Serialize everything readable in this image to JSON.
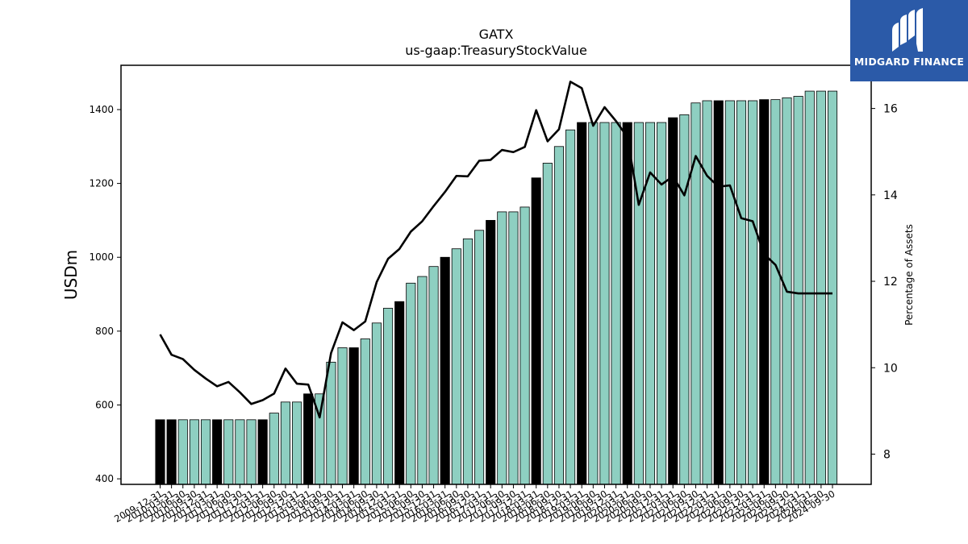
{
  "logo": {
    "text": "MIDGARD FINANCE"
  },
  "chart_data": {
    "type": "bar",
    "title": "GATX",
    "subtitle": "us-gaap:TreasuryStockValue",
    "ylabel": "USDm",
    "y2label": "Percentage of Assets",
    "ylim": [
      385,
      1520
    ],
    "y2lim": [
      7.3,
      17.0
    ],
    "yticks": [
      400,
      600,
      800,
      1000,
      1200,
      1400
    ],
    "y2ticks": [
      8,
      10,
      12,
      14,
      16
    ],
    "grid": false,
    "colors": {
      "bar_quarter": "#8ecfc1",
      "bar_annual": "#000000",
      "line": "#000000"
    },
    "categories": [
      "2009-12-31",
      "2010-03-31",
      "2010-06-30",
      "2010-09-30",
      "2010-12-31",
      "2011-03-31",
      "2011-06-30",
      "2011-09-30",
      "2011-12-31",
      "2012-03-31",
      "2012-06-30",
      "2012-09-30",
      "2012-12-31",
      "2013-03-31",
      "2013-06-30",
      "2013-09-30",
      "2013-12-31",
      "2014-03-31",
      "2014-06-30",
      "2014-09-30",
      "2014-12-31",
      "2015-03-31",
      "2015-06-30",
      "2015-09-30",
      "2015-12-31",
      "2016-03-31",
      "2016-06-30",
      "2016-09-30",
      "2016-12-31",
      "2017-03-31",
      "2017-06-30",
      "2017-09-30",
      "2017-12-31",
      "2018-03-31",
      "2018-06-30",
      "2018-09-30",
      "2018-12-31",
      "2019-03-31",
      "2019-06-30",
      "2019-09-30",
      "2019-12-31",
      "2020-03-31",
      "2020-06-30",
      "2020-09-30",
      "2020-12-31",
      "2021-03-31",
      "2021-06-30",
      "2021-09-30",
      "2021-12-31",
      "2022-03-31",
      "2022-06-30",
      "2022-09-30",
      "2022-12-31",
      "2023-03-31",
      "2023-06-30",
      "2023-09-30",
      "2023-12-31",
      "2024-03-31",
      "2024-06-30",
      "2024-09-30"
    ],
    "xtick_labels": [
      "2009-12-31",
      "2010-03-31",
      "2010-06-30",
      "2010-09-30",
      "2010-12-31",
      "2011-03-31",
      "2011-06-30",
      "2011-09-30",
      "2011-12-31",
      "2012-03-31",
      "2012-06-30",
      "2012-09-30",
      "2012-12-31",
      "2013-03-31",
      "2013-06-30",
      "2013-09-30",
      "2013-12-31",
      "2014-03-31",
      "2014-06-30",
      "2014-09-30",
      "2014-12-31",
      "2015-03-31",
      "2015-06-30",
      "2015-09-30",
      "2015-12-31",
      "2016-03-31",
      "2016-06-30",
      "2016-09-30",
      "2016-12-31",
      "2017-03-31",
      "2017-06-30",
      "2017-09-30",
      "2017-12-31",
      "2018-03-31",
      "2018-06-30",
      "2018-09-30",
      "2018-12-31",
      "2019-03-31",
      "2019-06-30",
      "2019-09-30",
      "2019-12-31",
      "2020-03-31",
      "2020-06-30",
      "2020-09-30",
      "2020-12-31",
      "2021-03-31",
      "2021-06-30",
      "2021-09-30",
      "2021-12-31",
      "2022-03-31",
      "2022-06-30",
      "2022-09-30",
      "2022-12-31",
      "2023-03-31",
      "2023-06-30",
      "2023-09-30",
      "2023-12-31",
      "2024-03-31",
      "2024-06-30",
      "2024-09-30"
    ],
    "annual": [
      true,
      true,
      false,
      false,
      false,
      true,
      false,
      false,
      false,
      true,
      false,
      false,
      false,
      true,
      false,
      false,
      false,
      true,
      false,
      false,
      false,
      true,
      false,
      false,
      false,
      true,
      false,
      false,
      false,
      true,
      false,
      false,
      false,
      true,
      false,
      false,
      false,
      true,
      false,
      false,
      false,
      true,
      false,
      false,
      false,
      true,
      false,
      false,
      false,
      true,
      false,
      false,
      false,
      true,
      false,
      false,
      false,
      false,
      false,
      false
    ],
    "series": [
      {
        "name": "TreasuryStockValue",
        "type": "bar",
        "axis": "left",
        "values": [
          560,
          560,
          560,
          560,
          560,
          560,
          560,
          560,
          560,
          560,
          578,
          608,
          608,
          630,
          630,
          716,
          755,
          755,
          779,
          822,
          862,
          880,
          930,
          948,
          975,
          1000,
          1023,
          1050,
          1073,
          1100,
          1123,
          1123,
          1136,
          1215,
          1255,
          1300,
          1345,
          1365,
          1365,
          1365,
          1365,
          1365,
          1365,
          1365,
          1365,
          1378,
          1386,
          1418,
          1424,
          1424,
          1424,
          1424,
          1424,
          1427,
          1427,
          1432,
          1436,
          1450,
          1450,
          1450
        ]
      },
      {
        "name": "Percentage of Assets",
        "type": "line",
        "axis": "right",
        "values": [
          10.77,
          10.3,
          10.2,
          9.95,
          9.75,
          9.57,
          9.67,
          9.43,
          9.16,
          9.25,
          9.4,
          9.98,
          9.63,
          9.61,
          8.85,
          10.34,
          11.05,
          10.87,
          11.07,
          11.98,
          12.52,
          12.75,
          13.15,
          13.39,
          13.74,
          14.07,
          14.44,
          14.43,
          14.79,
          14.81,
          15.04,
          14.99,
          15.11,
          15.96,
          15.24,
          15.52,
          16.62,
          16.47,
          15.6,
          16.03,
          15.71,
          15.34,
          13.77,
          14.52,
          14.24,
          14.43,
          13.99,
          14.9,
          14.44,
          14.19,
          14.22,
          13.46,
          13.39,
          12.63,
          12.38,
          11.76,
          11.72,
          11.72,
          11.72,
          11.72
        ]
      }
    ]
  }
}
